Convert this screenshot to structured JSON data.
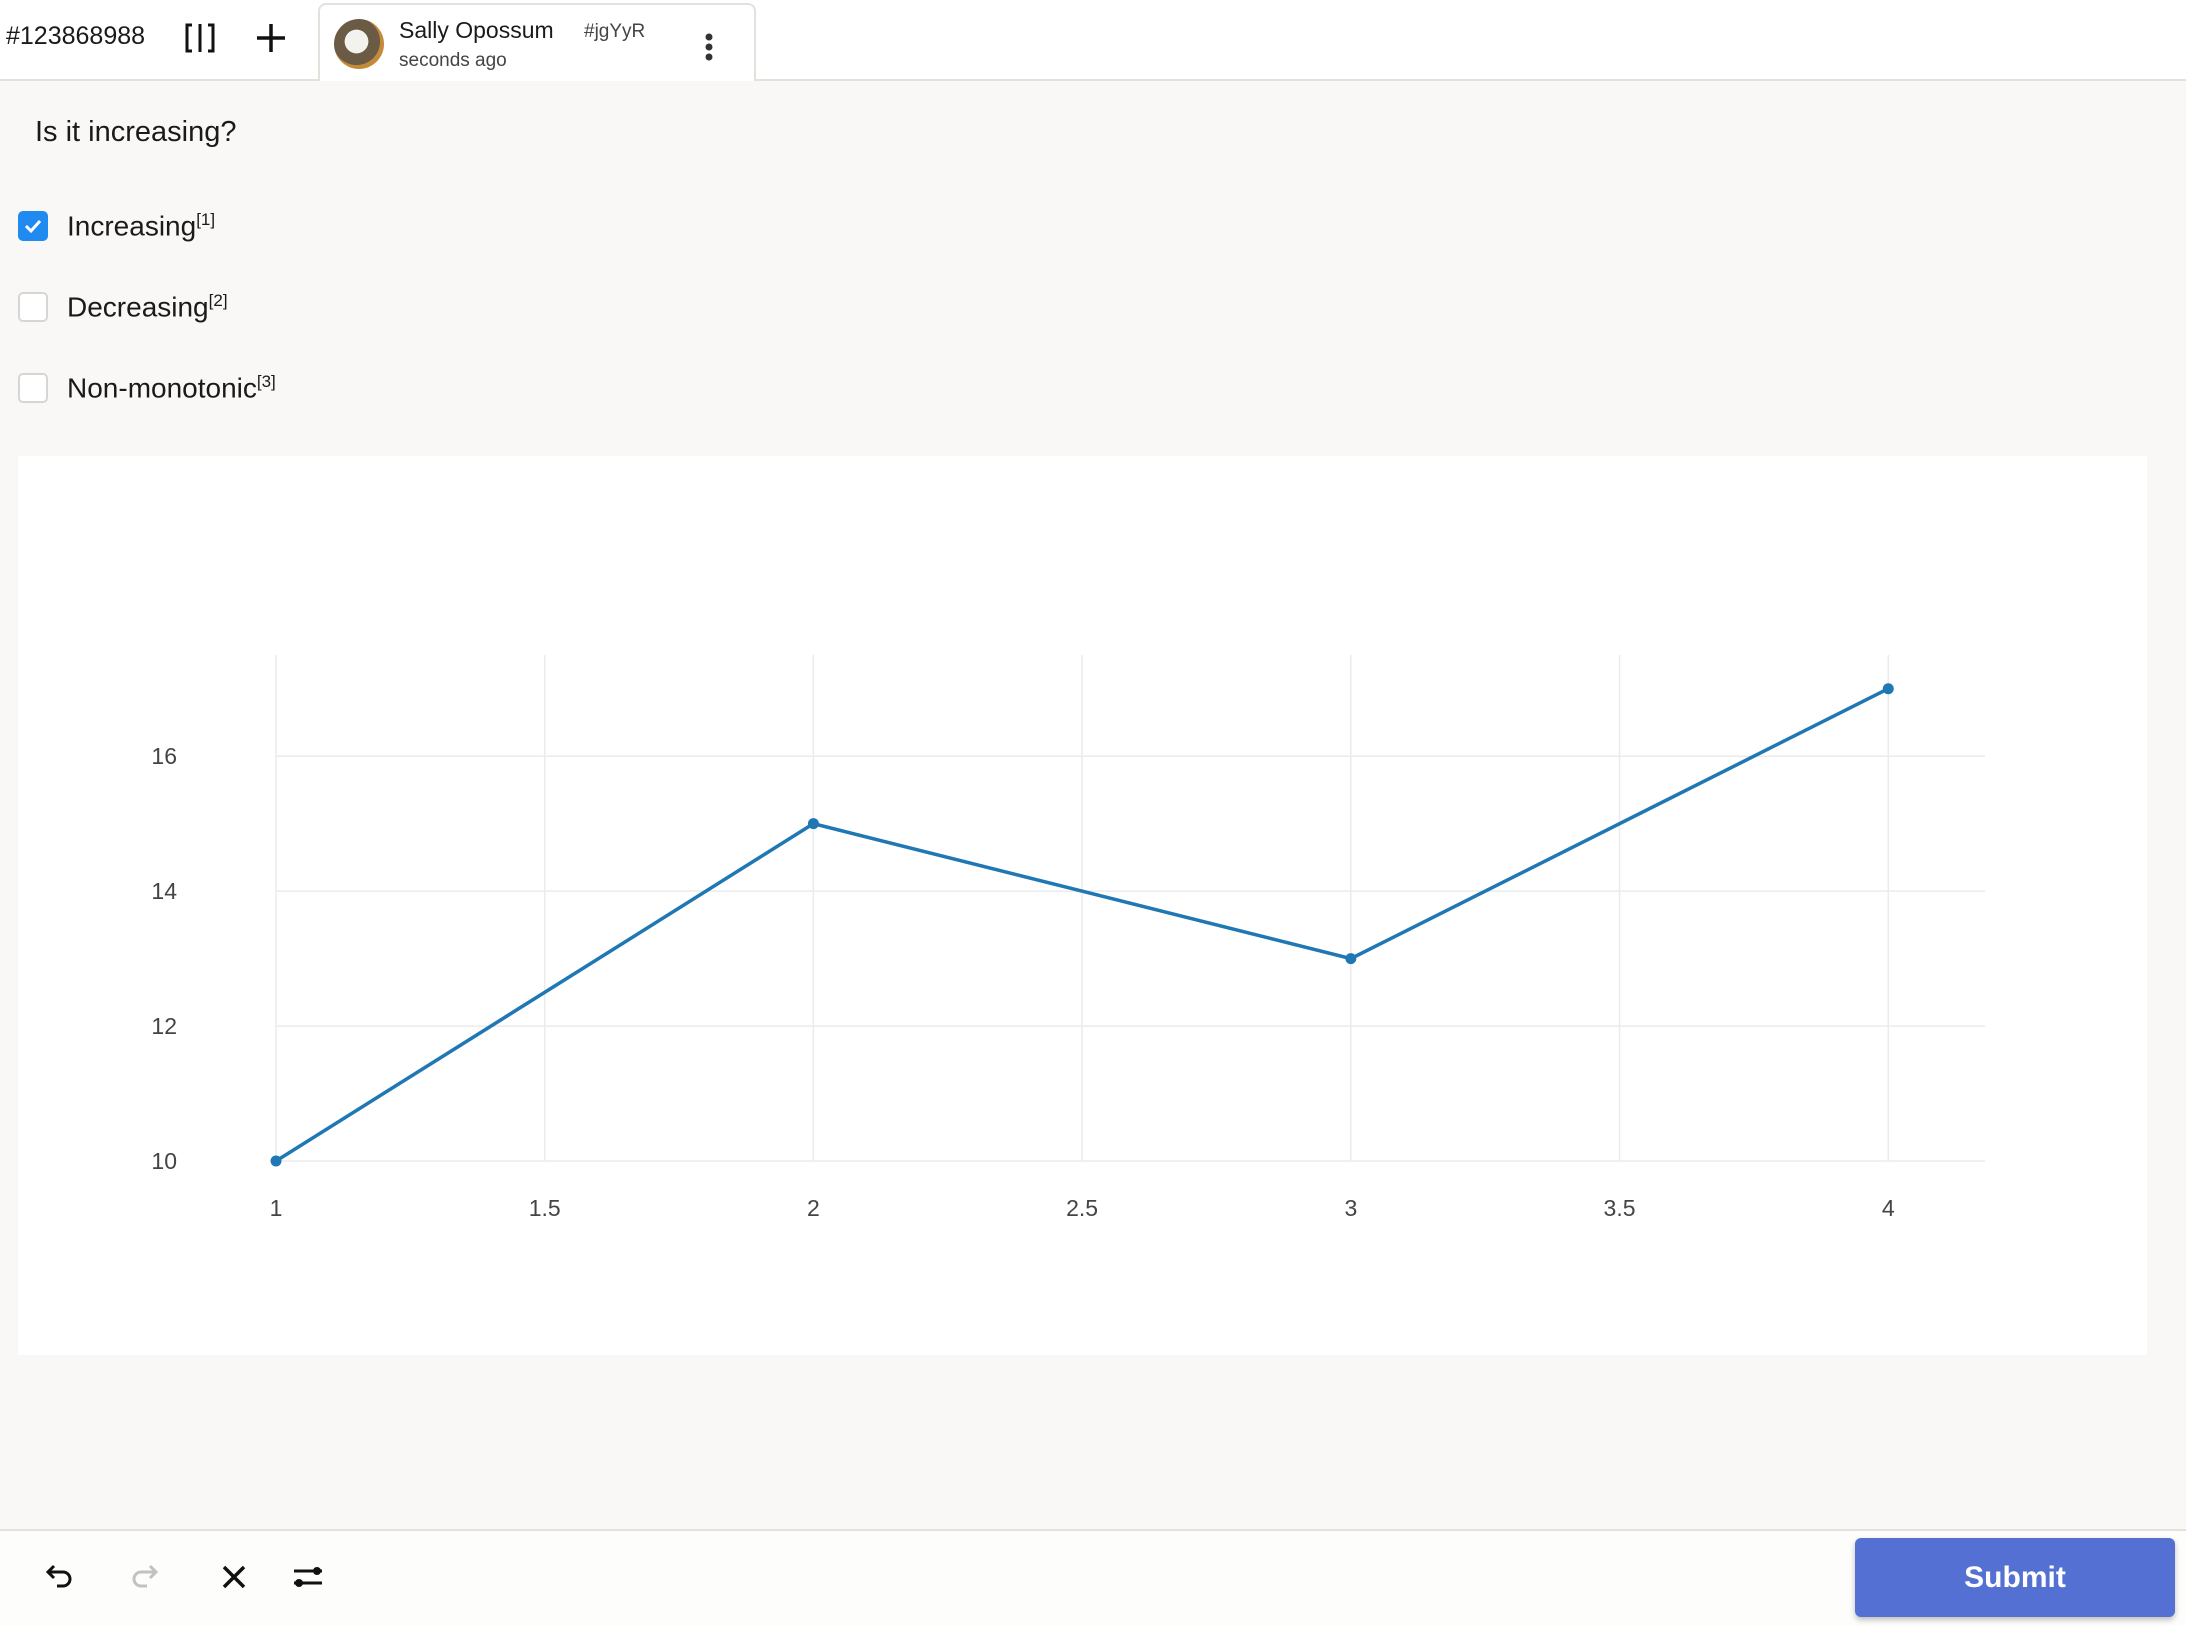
{
  "header": {
    "task_id": "#123868988",
    "tab": {
      "name": "Sally Opossum",
      "hash": "#jgYyR",
      "time": "seconds ago"
    }
  },
  "question": "Is it increasing?",
  "options": [
    {
      "label": "Increasing",
      "shortcut": "[1]",
      "checked": true
    },
    {
      "label": "Decreasing",
      "shortcut": "[2]",
      "checked": false
    },
    {
      "label": "Non-monotonic",
      "shortcut": "[3]",
      "checked": false
    }
  ],
  "chart_data": {
    "type": "line",
    "x": [
      1,
      2,
      3,
      4
    ],
    "y": [
      10,
      15,
      13,
      17
    ],
    "xticks": [
      "1",
      "1.5",
      "2",
      "2.5",
      "3",
      "3.5",
      "4"
    ],
    "yticks": [
      "10",
      "12",
      "14",
      "16"
    ],
    "xlim": [
      1,
      4.18
    ],
    "ylim": [
      10,
      17.5
    ],
    "grid": true,
    "color": "#1f77b4",
    "markers": true
  },
  "footer": {
    "submit_label": "Submit"
  },
  "colors": {
    "accent": "#5570d3",
    "checkbox": "#1f8af0"
  }
}
